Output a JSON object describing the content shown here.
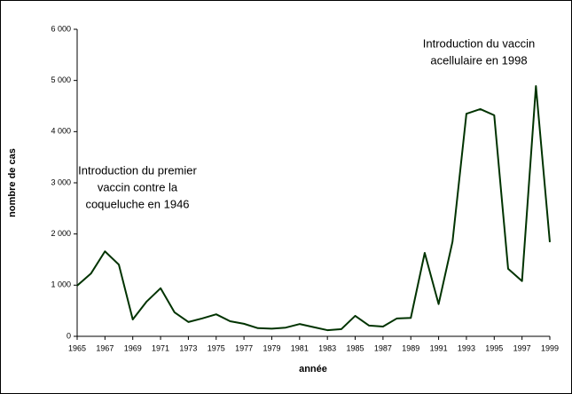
{
  "chart_data": {
    "type": "line",
    "xlabel": "année",
    "ylabel": "nombre de cas",
    "x": [
      1965,
      1966,
      1967,
      1968,
      1969,
      1970,
      1971,
      1972,
      1973,
      1974,
      1975,
      1976,
      1977,
      1978,
      1979,
      1980,
      1981,
      1982,
      1983,
      1984,
      1985,
      1986,
      1987,
      1988,
      1989,
      1990,
      1991,
      1992,
      1993,
      1994,
      1995,
      1996,
      1997,
      1998,
      1999
    ],
    "series": [
      {
        "color": "#003300",
        "values": [
          990,
          1230,
          1660,
          1400,
          330,
          680,
          940,
          470,
          280,
          350,
          430,
          295,
          245,
          160,
          150,
          170,
          240,
          180,
          120,
          140,
          400,
          210,
          190,
          350,
          360,
          1630,
          630,
          1850,
          4350,
          4440,
          4320,
          1320,
          1080,
          4890,
          1840
        ]
      }
    ],
    "xlim": [
      1965,
      1999
    ],
    "xticks": [
      1965,
      1967,
      1969,
      1971,
      1973,
      1975,
      1977,
      1979,
      1981,
      1983,
      1985,
      1987,
      1989,
      1991,
      1993,
      1995,
      1997,
      1999
    ],
    "ylim": [
      0,
      6000
    ],
    "yticks": [
      0,
      {
        "value": 1000,
        "label": "1 000"
      },
      {
        "value": 2000,
        "label": "2 000"
      },
      {
        "value": 3000,
        "label": "3 000"
      },
      {
        "value": 4000,
        "label": "4 000"
      },
      {
        "value": 5000,
        "label": "5 000"
      },
      {
        "value": 6000,
        "label": "6 000"
      }
    ],
    "annotations": [
      {
        "lines": [
          "Introduction du premier",
          "vaccin contre la",
          "coqueluche en 1946"
        ]
      },
      {
        "lines": [
          "Introduction du vaccin",
          "acellulaire en 1998"
        ]
      }
    ]
  }
}
